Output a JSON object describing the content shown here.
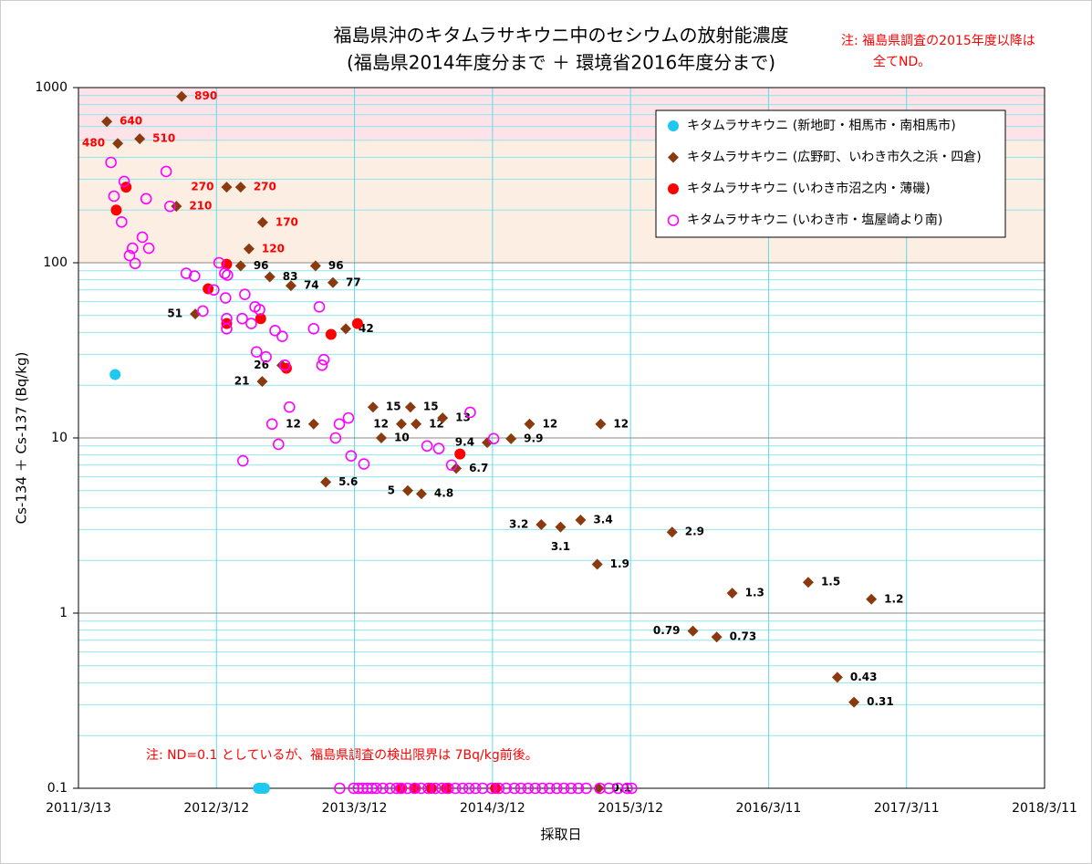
{
  "chart_data": {
    "type": "scatter",
    "title": "福島県沖のキタムラサキウニ中のセシウムの放射能濃度",
    "subtitle": "(福島県2014年度分まで ＋ 環境省2016年度分まで)",
    "annotations": [
      "注: 福島県調査の2015年度以降は",
      "全てND。",
      "注: ND=0.1 としているが、福島県調査の検出限界は 7Bq/kg前後。"
    ],
    "xlabel": "採取日",
    "ylabel": "Cs-134 ＋ Cs-137 (Bq/kg)",
    "xlim": [
      "2011/3/13",
      "2018/3/11"
    ],
    "xticks": [
      "2011/3/13",
      "2012/3/12",
      "2013/3/12",
      "2014/3/12",
      "2015/3/12",
      "2016/3/11",
      "2017/3/11",
      "2018/3/11"
    ],
    "ylim": [
      0.1,
      1000
    ],
    "yticks": [
      0.1,
      1,
      10,
      100,
      1000
    ],
    "log_y": true,
    "grid": true,
    "legend": "upper right",
    "bands": [
      {
        "from": 500,
        "to": 1000,
        "color": "#fde3e8"
      },
      {
        "from": 100,
        "to": 500,
        "color": "#fdeee3"
      }
    ],
    "series": [
      {
        "name": "キタムラサキウニ (新地町・相馬市・南相馬市)",
        "color": "#1ec8f0",
        "marker": "circle",
        "x": [
          "2011/6/18",
          "2012/7/1",
          "2012/7/5",
          "2012/7/9",
          "2012/7/13",
          "2012/7/17"
        ],
        "values": [
          23,
          0.1,
          0.1,
          0.1,
          0.1,
          0.1
        ]
      },
      {
        "name": "キタムラサキウニ (広野町、いわき市久之浜・四倉)",
        "color": "#8b3a0f",
        "marker": "diamond",
        "data_labels": true,
        "x": [
          "2011/5/27",
          "2011/6/25",
          "2011/8/22",
          "2011/11/27",
          "2011/12/11",
          "2012/1/16",
          "2012/4/8",
          "2012/5/15",
          "2012/5/15",
          "2012/6/6",
          "2012/7/11",
          "2012/7/12",
          "2012/7/31",
          "2012/9/1",
          "2012/9/25",
          "2012/11/24",
          "2012/11/29",
          "2012/12/26",
          "2013/1/14",
          "2013/2/17",
          "2013/4/30",
          "2013/5/22",
          "2013/7/14",
          "2013/7/31",
          "2013/8/7",
          "2013/8/22",
          "2013/9/5",
          "2013/10/31",
          "2013/12/6",
          "2014/2/26",
          "2014/4/30",
          "2014/6/18",
          "2014/7/19",
          "2014/9/8",
          "2014/10/31",
          "2014/12/14",
          "2014/12/23",
          "2015/6/30",
          "2015/8/24",
          "2015/10/26",
          "2015/12/6",
          "2016/6/24",
          "2016/9/9",
          "2016/10/23",
          "2016/12/8",
          "2014/12/18"
        ],
        "values": [
          640,
          480,
          510,
          210,
          890,
          51,
          270,
          270,
          96,
          120,
          21,
          170,
          83,
          26,
          74,
          12,
          96,
          5.6,
          77,
          42,
          15,
          10,
          12,
          5,
          15,
          12,
          4.8,
          13,
          6.7,
          9.4,
          9.9,
          12,
          3.2,
          3.1,
          3.4,
          1.9,
          12,
          2.9,
          0.79,
          0.73,
          1.3,
          1.5,
          0.43,
          0.31,
          1.2,
          0.1
        ]
      },
      {
        "name": "キタムラサキウニ (いわき市沼之内・薄磯)",
        "color": "#ff0000",
        "marker": "circle",
        "x": [
          "2011/6/21",
          "2011/7/17",
          "2012/2/19",
          "2012/4/8",
          "2012/4/8",
          "2012/7/7",
          "2012/9/13",
          "2013/1/9",
          "2013/3/20",
          "2013/12/16",
          "2013/7/15",
          "2013/8/20",
          "2013/10/1",
          "2013/11/10",
          "2014/3/20"
        ],
        "values": [
          200,
          270,
          71,
          98,
          45,
          48,
          25,
          39,
          45,
          8.1,
          0.1,
          0.1,
          0.1,
          0.1,
          0.1
        ]
      },
      {
        "name": "キタムラサキウニ (いわき市・塩屋崎より南)",
        "color": "#ff00ff",
        "marker": "open-circle",
        "x": [
          "2011/6/7",
          "2011/6/15",
          "2011/7/12",
          "2011/7/5",
          "2011/8/3",
          "2011/7/26",
          "2011/8/10",
          "2011/8/29",
          "2011/9/8",
          "2011/9/15",
          "2011/10/31",
          "2011/11/10",
          "2011/12/23",
          "2012/1/14",
          "2012/2/5",
          "2012/3/5",
          "2012/3/19",
          "2012/4/3",
          "2012/4/5",
          "2012/4/8",
          "2012/4/8",
          "2012/4/10",
          "2012/5/19",
          "2012/5/26",
          "2012/6/12",
          "2012/6/22",
          "2012/7/4",
          "2012/6/26",
          "2012/7/21",
          "2012/5/21",
          "2012/8/6",
          "2012/8/14",
          "2012/8/23",
          "2012/9/2",
          "2012/9/9",
          "2012/9/21",
          "2012/11/24",
          "2012/12/9",
          "2012/12/16",
          "2012/12/21",
          "2013/1/21",
          "2013/1/31",
          "2013/2/24",
          "2013/3/3",
          "2013/4/6",
          "2013/9/20",
          "2013/10/21",
          "2013/11/24",
          "2014/1/12",
          "2014/3/15",
          "2013/2/1",
          "2013/3/10",
          "2013/3/22",
          "2013/4/3",
          "2013/4/15",
          "2013/4/27",
          "2013/5/9",
          "2013/5/26",
          "2013/6/14",
          "2013/7/1",
          "2013/7/13",
          "2013/7/30",
          "2013/8/18",
          "2013/9/4",
          "2013/9/23",
          "2013/10/12",
          "2013/10/29",
          "2013/11/15",
          "2013/12/4",
          "2013/12/23",
          "2014/1/9",
          "2014/1/26",
          "2014/2/14",
          "2014/3/10",
          "2014/3/29",
          "2014/4/17",
          "2014/5/9",
          "2014/5/26",
          "2014/6/14",
          "2014/7/3",
          "2014/7/22",
          "2014/8/10",
          "2014/8/29",
          "2014/9/17",
          "2014/10/6",
          "2014/10/25",
          "2014/11/15",
          "2014/12/21",
          "2015/1/14",
          "2015/2/7",
          "2015/3/3",
          "2015/3/15"
        ],
        "values": [
          374,
          240,
          291,
          171,
          121,
          110,
          99,
          140,
          232,
          121,
          332,
          210,
          87,
          84,
          53,
          70,
          100,
          87,
          63,
          48,
          42,
          85,
          48,
          66,
          45,
          56,
          54,
          31,
          29,
          7.4,
          12,
          41,
          9.2,
          38,
          26,
          15,
          42,
          56,
          26,
          28,
          10,
          12,
          13,
          7.9,
          7.1,
          9,
          8.7,
          7,
          14,
          9.9,
          0.1,
          0.1,
          0.1,
          0.1,
          0.1,
          0.1,
          0.1,
          0.1,
          0.1,
          0.1,
          0.1,
          0.1,
          0.1,
          0.1,
          0.1,
          0.1,
          0.1,
          0.1,
          0.1,
          0.1,
          0.1,
          0.1,
          0.1,
          0.1,
          0.1,
          0.1,
          0.1,
          0.1,
          0.1,
          0.1,
          0.1,
          0.1,
          0.1,
          0.1,
          0.1,
          0.1,
          0.1,
          0.1,
          0.1,
          0.1,
          0.1,
          0.1
        ]
      }
    ]
  }
}
